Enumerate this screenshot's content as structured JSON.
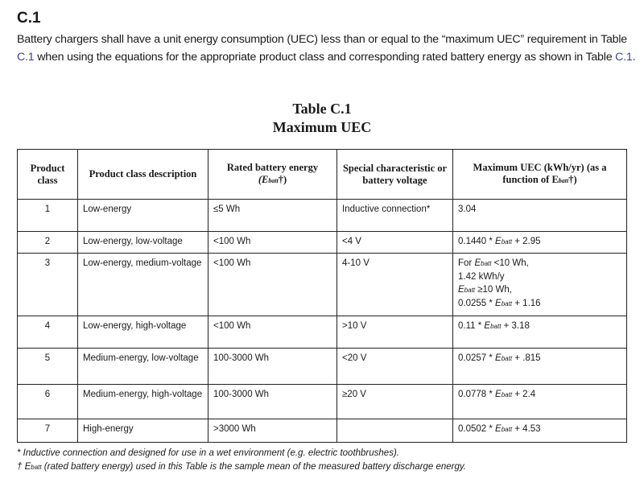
{
  "section": {
    "heading": "C.1",
    "intro_parts": [
      "Battery chargers shall have a unit energy consumption (UEC) less than or equal to the “maximum UEC” requirement in Table ",
      "C.1",
      " when using the equations for the appropriate product class and corresponding rated battery energy as shown in Table ",
      "C.1",
      "."
    ]
  },
  "table": {
    "title": "Table C.1",
    "subtitle": "Maximum UEC",
    "headers": {
      "product_class": "Product class",
      "description": "Product class description",
      "rated_energy": "Rated battery energy",
      "rated_energy_sym": "(E",
      "rated_energy_sub": "batt",
      "rated_energy_end": "†)",
      "special": "Special characteristic or battery voltage",
      "max_uec": "Maximum UEC (kWh/yr) (as a function of E",
      "max_uec_sub": "batt",
      "max_uec_end": "†)"
    },
    "rows": [
      {
        "class": "1",
        "description": "Low-energy",
        "rated_energy": "≤5 Wh",
        "special": "Inductive connection*",
        "max_uec": [
          [
            {
              "t": "3.04"
            }
          ]
        ]
      },
      {
        "class": "2",
        "description": "Low-energy, low-voltage",
        "rated_energy": "<100 Wh",
        "special": "<4 V",
        "max_uec": [
          [
            {
              "t": "0.1440 * "
            },
            {
              "e": "E"
            },
            {
              "s": "batt"
            },
            {
              "t": " + 2.95"
            }
          ]
        ]
      },
      {
        "class": "3",
        "description": "Low-energy, medium-voltage",
        "rated_energy": "<100 Wh",
        "special": "4-10 V",
        "max_uec": [
          [
            {
              "t": "For "
            },
            {
              "e": "E"
            },
            {
              "s": "batt"
            },
            {
              "t": " <10 Wh,"
            }
          ],
          [
            {
              "t": "1.42 kWh/y"
            }
          ],
          [
            {
              "e": "E"
            },
            {
              "s": "batt"
            },
            {
              "t": " ≥10 Wh,"
            }
          ],
          [
            {
              "t": "0.0255 * "
            },
            {
              "e": "E"
            },
            {
              "s": "batt"
            },
            {
              "t": " + 1.16"
            }
          ]
        ]
      },
      {
        "class": "4",
        "description": "Low-energy, high-voltage",
        "rated_energy": "<100 Wh",
        "special": ">10 V",
        "max_uec": [
          [
            {
              "t": "0.11 * "
            },
            {
              "e": "E"
            },
            {
              "s": "batt"
            },
            {
              "t": " + 3.18"
            }
          ]
        ]
      },
      {
        "class": "5",
        "description": "Medium-energy, low-voltage",
        "rated_energy": "100-3000 Wh",
        "special": "<20 V",
        "max_uec": [
          [
            {
              "t": "0.0257 * "
            },
            {
              "e": "E"
            },
            {
              "s": "batt"
            },
            {
              "t": " + .815"
            }
          ]
        ]
      },
      {
        "class": "6",
        "description": "Medium-energy, high-voltage",
        "rated_energy": "100-3000 Wh",
        "special": "≥20 V",
        "max_uec": [
          [
            {
              "t": "0.0778 * "
            },
            {
              "e": "E"
            },
            {
              "s": "batt"
            },
            {
              "t": " + 2.4"
            }
          ]
        ]
      },
      {
        "class": "7",
        "description": "High-energy",
        "rated_energy": ">3000 Wh",
        "special": "",
        "max_uec": [
          [
            {
              "t": "0.0502 * "
            },
            {
              "e": "E"
            },
            {
              "s": "batt"
            },
            {
              "t": " + 4.53"
            }
          ]
        ]
      }
    ],
    "footnotes": {
      "star": "* Inductive connection and designed for use in a wet environment (e.g. electric toothbrushes).",
      "dagger_mark": "† ",
      "dagger_sym": "E",
      "dagger_sub": "batt",
      "dagger_text": " (rated battery energy) used in this Table is the sample mean of the measured battery discharge energy."
    }
  }
}
